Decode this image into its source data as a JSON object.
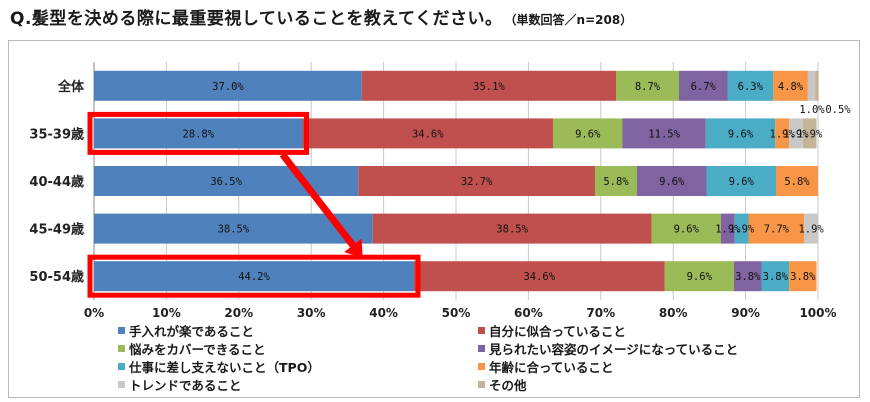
{
  "title": "Q.髪型を決める際に最重要視していることを教えてください。",
  "subtitle": "（単数回答／n=208）",
  "chart_data": {
    "type": "bar",
    "orientation": "horizontal",
    "stacked": true,
    "categories": [
      "全体",
      "35-39歳",
      "40-44歳",
      "45-49歳",
      "50-54歳"
    ],
    "xlim": [
      0,
      100
    ],
    "x_ticks": [
      "0%",
      "10%",
      "20%",
      "30%",
      "40%",
      "50%",
      "60%",
      "70%",
      "80%",
      "90%",
      "100%"
    ],
    "grid": true,
    "legend_position": "bottom",
    "series": [
      {
        "name": "手入れが楽であること",
        "color": "#4f81bd",
        "values": [
          37.0,
          28.8,
          36.5,
          38.5,
          44.2
        ],
        "labels": [
          "37.0%",
          "28.8%",
          "36.5%",
          "38.5%",
          "44.2%"
        ]
      },
      {
        "name": "自分に似合っていること",
        "color": "#c0504d",
        "values": [
          35.1,
          34.6,
          32.7,
          38.5,
          34.6
        ],
        "labels": [
          "35.1%",
          "34.6%",
          "32.7%",
          "38.5%",
          "34.6%"
        ]
      },
      {
        "name": "悩みをカバーできること",
        "color": "#9bbb59",
        "values": [
          8.7,
          9.6,
          5.8,
          9.6,
          9.6
        ],
        "labels": [
          "8.7%",
          "9.6%",
          "5.8%",
          "9.6%",
          "9.6%"
        ]
      },
      {
        "name": "見られたい容姿のイメージになっていること",
        "color": "#8064a2",
        "values": [
          6.7,
          11.5,
          9.6,
          1.9,
          3.8
        ],
        "labels": [
          "6.7%",
          "11.5%",
          "9.6%",
          "1.9%",
          "3.8%"
        ]
      },
      {
        "name": "仕事に差し支えないこと（TPO）",
        "color": "#4bacc6",
        "values": [
          6.3,
          9.6,
          9.6,
          1.9,
          3.8
        ],
        "labels": [
          "6.3%",
          "9.6%",
          "9.6%",
          "1.9%",
          "3.8%"
        ]
      },
      {
        "name": "年齢に合っていること",
        "color": "#f79646",
        "values": [
          4.8,
          1.9,
          5.8,
          7.7,
          3.8
        ],
        "labels": [
          "4.8%",
          "1.9%",
          "5.8%",
          "7.7%",
          "3.8%"
        ]
      },
      {
        "name": "トレンドであること",
        "color": "#c8c8c8",
        "values": [
          1.0,
          1.9,
          0,
          1.9,
          0
        ],
        "labels": [
          "1.0%",
          "1.9%",
          "",
          "1.9%",
          ""
        ]
      },
      {
        "name": "その他",
        "color": "#c4b49a",
        "values": [
          0.5,
          1.9,
          0,
          0,
          0
        ],
        "labels": [
          "0.5%",
          "1.9%",
          "",
          "",
          ""
        ]
      }
    ],
    "highlights": [
      {
        "category": "35-39歳",
        "series": "手入れが楽であること"
      },
      {
        "category": "50-54歳",
        "series": "手入れが楽であること"
      }
    ],
    "arrow": {
      "from": "35-39歳",
      "to": "50-54歳"
    }
  }
}
